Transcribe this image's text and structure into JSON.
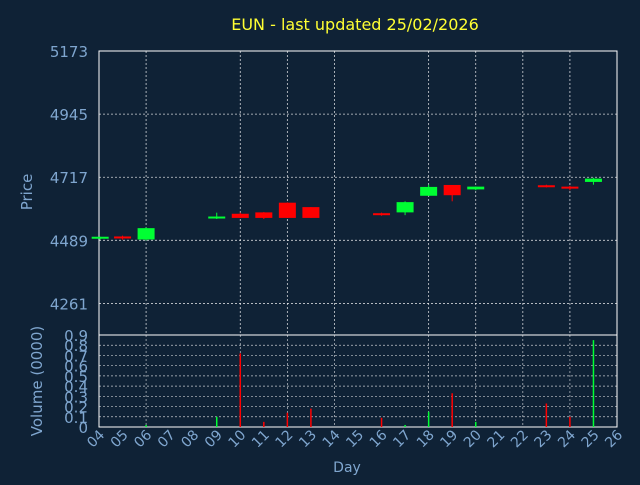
{
  "chart_data": {
    "type": "candlestick",
    "title": "EUN - last updated 25/02/2026",
    "xlabel": "Day",
    "price": {
      "ylabel": "Price",
      "ylim": [
        4147,
        5173
      ],
      "yticks": [
        4261,
        4489,
        4717,
        4945,
        5173
      ],
      "grid": true
    },
    "volume": {
      "ylabel": "Volume (0000)",
      "ylim": [
        0,
        0.9
      ],
      "yticks": [
        0.1,
        0.2,
        0.3,
        0.4,
        0.5,
        0.6,
        0.7,
        0.8,
        0.9
      ],
      "ytick_labels": [
        "0.1",
        "0.2",
        "0.3",
        "0.4",
        "0.5",
        "0.6",
        "0.7",
        "0.8",
        "0.9"
      ],
      "extra_tick_label": "0",
      "grid": true
    },
    "x_ticks": [
      "04",
      "05",
      "06",
      "07",
      "08",
      "09",
      "10",
      "11",
      "12",
      "13",
      "14",
      "15",
      "16",
      "17",
      "18",
      "19",
      "20",
      "21",
      "22",
      "23",
      "24",
      "25",
      "26"
    ],
    "x_grid_days": [
      4,
      6,
      10,
      12,
      14,
      18,
      20,
      22,
      24
    ],
    "candles": [
      {
        "day": 4.05,
        "open": 4497,
        "high": 4502,
        "low": 4492,
        "close": 4502,
        "volume": 0.0
      },
      {
        "day": 5.0,
        "open": 4503,
        "high": 4506,
        "low": 4491,
        "close": 4497,
        "volume": 0.0
      },
      {
        "day": 6.0,
        "open": 4492,
        "high": 4536,
        "low": 4489,
        "close": 4533,
        "volume": 0.02
      },
      {
        "day": 9.0,
        "open": 4572,
        "high": 4589,
        "low": 4566,
        "close": 4575,
        "volume": 0.1
      },
      {
        "day": 10.0,
        "open": 4585,
        "high": 4589,
        "low": 4570,
        "close": 4570,
        "volume": 0.72
      },
      {
        "day": 11.0,
        "open": 4590,
        "high": 4591,
        "low": 4566,
        "close": 4570,
        "volume": 0.05
      },
      {
        "day": 12.0,
        "open": 4625,
        "high": 4626,
        "low": 4570,
        "close": 4570,
        "volume": 0.14
      },
      {
        "day": 13.0,
        "open": 4609,
        "high": 4609,
        "low": 4570,
        "close": 4570,
        "volume": 0.18
      },
      {
        "day": 16.0,
        "open": 4587,
        "high": 4589,
        "low": 4578,
        "close": 4580,
        "volume": 0.09
      },
      {
        "day": 17.0,
        "open": 4590,
        "high": 4630,
        "low": 4580,
        "close": 4627,
        "volume": 0.02
      },
      {
        "day": 18.0,
        "open": 4650,
        "high": 4690,
        "low": 4650,
        "close": 4682,
        "volume": 0.15
      },
      {
        "day": 19.0,
        "open": 4689,
        "high": 4689,
        "low": 4630,
        "close": 4652,
        "volume": 0.33
      },
      {
        "day": 20.0,
        "open": 4673,
        "high": 4683,
        "low": 4670,
        "close": 4683,
        "volume": 0.05
      },
      {
        "day": 23.0,
        "open": 4688,
        "high": 4690,
        "low": 4680,
        "close": 4682,
        "volume": 0.23
      },
      {
        "day": 24.0,
        "open": 4683,
        "high": 4686,
        "low": 4670,
        "close": 4678,
        "volume": 0.1
      },
      {
        "day": 25.0,
        "open": 4700,
        "high": 4715,
        "low": 4690,
        "close": 4712,
        "volume": 0.85
      }
    ],
    "colors": {
      "background": "#0f2236",
      "up": "#00ff33",
      "down": "#ff0000",
      "title": "#ffff33",
      "axis_text": "#7fa6cf",
      "frame": "#ffffff",
      "grid": "#ffffff"
    }
  }
}
